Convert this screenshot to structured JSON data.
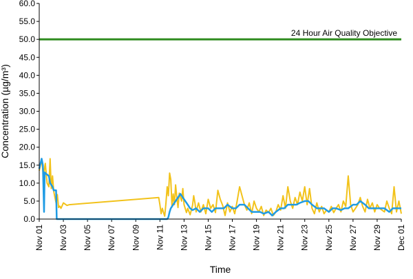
{
  "chart_data": {
    "type": "line",
    "ylabel": "Concentration (µg/m³)",
    "xlabel": "Time",
    "ylim": [
      0,
      60
    ],
    "ytick_labels": [
      "0.0",
      "5.0",
      "10.0",
      "15.0",
      "20.0",
      "25.0",
      "30.0",
      "35.0",
      "40.0",
      "45.0",
      "50.0",
      "55.0",
      "60.0"
    ],
    "x_domain_days": [
      0,
      30
    ],
    "xtick_labels": [
      "Nov 01",
      "Nov 03",
      "Nov 05",
      "Nov 07",
      "Nov 09",
      "Nov 11",
      "Nov 13",
      "Nov 15",
      "Nov 17",
      "Nov 19",
      "Nov 21",
      "Nov 23",
      "Nov 25",
      "Nov 27",
      "Nov 29",
      "Dec 01"
    ],
    "grid": false,
    "objective": {
      "label": "24 Hour Air Quality Objective",
      "value": 50,
      "color": "#2e8b1e"
    },
    "series": [
      {
        "color": "#f2c21a",
        "points": [
          [
            0.0,
            13.5
          ],
          [
            0.2,
            16.5
          ],
          [
            0.35,
            12.0
          ],
          [
            0.5,
            15.5
          ],
          [
            0.65,
            10.0
          ],
          [
            0.8,
            9.0
          ],
          [
            0.9,
            16.8
          ],
          [
            1.0,
            8.5
          ],
          [
            1.1,
            12.0
          ],
          [
            1.2,
            7.8
          ],
          [
            1.3,
            6.0
          ],
          [
            1.4,
            4.5
          ],
          [
            1.5,
            6.8
          ],
          [
            1.6,
            3.2
          ],
          [
            1.7,
            3.6
          ],
          [
            1.8,
            3.0
          ],
          [
            2.0,
            4.5
          ],
          [
            2.3,
            3.8
          ],
          [
            2.5,
            4.0
          ],
          [
            9.9,
            6.0
          ],
          [
            10.0,
            4.0
          ],
          [
            10.1,
            1.5
          ],
          [
            10.2,
            3.0
          ],
          [
            10.3,
            1.8
          ],
          [
            10.4,
            0.8
          ],
          [
            10.5,
            4.5
          ],
          [
            10.6,
            9.0
          ],
          [
            10.7,
            6.5
          ],
          [
            10.8,
            12.8
          ],
          [
            10.9,
            11.0
          ],
          [
            11.0,
            3.5
          ],
          [
            11.1,
            7.0
          ],
          [
            11.2,
            4.0
          ],
          [
            11.3,
            9.5
          ],
          [
            11.4,
            6.0
          ],
          [
            11.5,
            3.2
          ],
          [
            11.6,
            7.2
          ],
          [
            11.8,
            5.0
          ],
          [
            11.9,
            8.5
          ],
          [
            12.0,
            4.0
          ],
          [
            12.2,
            1.8
          ],
          [
            12.3,
            3.0
          ],
          [
            12.5,
            1.2
          ],
          [
            12.7,
            3.8
          ],
          [
            12.8,
            6.5
          ],
          [
            12.9,
            4.5
          ],
          [
            13.0,
            2.0
          ],
          [
            13.2,
            4.5
          ],
          [
            13.4,
            2.0
          ],
          [
            13.6,
            4.0
          ],
          [
            13.8,
            1.5
          ],
          [
            14.0,
            5.5
          ],
          [
            14.2,
            3.0
          ],
          [
            14.4,
            4.0
          ],
          [
            14.6,
            1.8
          ],
          [
            14.8,
            8.0
          ],
          [
            15.0,
            5.5
          ],
          [
            15.2,
            3.8
          ],
          [
            15.4,
            1.0
          ],
          [
            15.6,
            4.5
          ],
          [
            15.8,
            2.0
          ],
          [
            16.0,
            3.5
          ],
          [
            16.2,
            1.5
          ],
          [
            16.4,
            5.0
          ],
          [
            16.6,
            9.0
          ],
          [
            16.8,
            6.5
          ],
          [
            17.0,
            4.0
          ],
          [
            17.2,
            2.5
          ],
          [
            17.4,
            4.5
          ],
          [
            17.6,
            1.5
          ],
          [
            17.8,
            5.0
          ],
          [
            18.0,
            3.0
          ],
          [
            18.2,
            2.0
          ],
          [
            18.4,
            3.5
          ],
          [
            18.6,
            1.0
          ],
          [
            18.8,
            2.5
          ],
          [
            19.0,
            1.8
          ],
          [
            19.2,
            3.0
          ],
          [
            19.4,
            1.0
          ],
          [
            19.6,
            2.0
          ],
          [
            19.8,
            4.0
          ],
          [
            20.0,
            2.5
          ],
          [
            20.2,
            6.5
          ],
          [
            20.4,
            3.0
          ],
          [
            20.6,
            9.0
          ],
          [
            20.8,
            5.0
          ],
          [
            21.0,
            3.0
          ],
          [
            21.2,
            6.0
          ],
          [
            21.4,
            4.0
          ],
          [
            21.6,
            7.5
          ],
          [
            21.8,
            5.0
          ],
          [
            22.0,
            9.0
          ],
          [
            22.2,
            4.0
          ],
          [
            22.4,
            8.5
          ],
          [
            22.6,
            3.0
          ],
          [
            22.8,
            1.5
          ],
          [
            23.0,
            4.5
          ],
          [
            23.2,
            2.0
          ],
          [
            23.4,
            3.5
          ],
          [
            23.6,
            1.5
          ],
          [
            23.8,
            2.5
          ],
          [
            24.0,
            2.0
          ],
          [
            24.2,
            3.5
          ],
          [
            24.4,
            1.8
          ],
          [
            24.6,
            3.0
          ],
          [
            24.8,
            4.0
          ],
          [
            25.0,
            2.0
          ],
          [
            25.2,
            5.0
          ],
          [
            25.4,
            3.5
          ],
          [
            25.6,
            12.0
          ],
          [
            25.8,
            4.0
          ],
          [
            26.0,
            2.0
          ],
          [
            26.2,
            3.0
          ],
          [
            26.4,
            4.0
          ],
          [
            26.6,
            6.0
          ],
          [
            26.8,
            3.5
          ],
          [
            27.0,
            2.0
          ],
          [
            27.2,
            5.5
          ],
          [
            27.4,
            3.0
          ],
          [
            27.6,
            4.5
          ],
          [
            27.8,
            2.0
          ],
          [
            28.0,
            4.0
          ],
          [
            28.2,
            3.0
          ],
          [
            28.4,
            2.5
          ],
          [
            28.6,
            2.0
          ],
          [
            28.8,
            5.0
          ],
          [
            29.0,
            3.0
          ],
          [
            29.2,
            1.5
          ],
          [
            29.4,
            9.0
          ],
          [
            29.6,
            2.0
          ],
          [
            29.8,
            5.0
          ],
          [
            30.0,
            1.5
          ]
        ]
      },
      {
        "color": "#1f9be4",
        "points": [
          [
            0.0,
            14.0
          ],
          [
            0.2,
            16.8
          ],
          [
            0.3,
            15.0
          ],
          [
            0.4,
            2.0
          ],
          [
            0.45,
            13.0
          ],
          [
            0.6,
            12.5
          ],
          [
            0.8,
            12.0
          ],
          [
            0.9,
            10.0
          ],
          [
            1.1,
            9.0
          ],
          [
            1.2,
            8.0
          ],
          [
            1.4,
            8.0
          ],
          [
            1.45,
            0.0
          ],
          [
            10.6,
            0.0
          ],
          [
            10.7,
            0.5
          ],
          [
            10.8,
            2.0
          ],
          [
            10.9,
            3.0
          ],
          [
            11.1,
            4.0
          ],
          [
            11.3,
            5.0
          ],
          [
            11.5,
            6.0
          ],
          [
            11.7,
            7.0
          ],
          [
            11.9,
            6.0
          ],
          [
            12.1,
            5.0
          ],
          [
            12.3,
            4.0
          ],
          [
            12.5,
            3.0
          ],
          [
            12.7,
            2.5
          ],
          [
            13.0,
            3.0
          ],
          [
            13.3,
            2.0
          ],
          [
            13.6,
            3.0
          ],
          [
            14.0,
            3.0
          ],
          [
            14.3,
            2.0
          ],
          [
            14.6,
            3.0
          ],
          [
            15.0,
            3.0
          ],
          [
            15.3,
            3.0
          ],
          [
            15.6,
            4.0
          ],
          [
            16.0,
            3.0
          ],
          [
            16.3,
            3.0
          ],
          [
            16.6,
            4.0
          ],
          [
            17.0,
            4.0
          ],
          [
            17.3,
            3.0
          ],
          [
            17.6,
            2.0
          ],
          [
            18.0,
            2.0
          ],
          [
            18.3,
            2.0
          ],
          [
            18.6,
            1.5
          ],
          [
            19.0,
            2.0
          ],
          [
            19.3,
            1.0
          ],
          [
            19.6,
            2.0
          ],
          [
            20.0,
            3.0
          ],
          [
            20.3,
            3.0
          ],
          [
            20.6,
            4.0
          ],
          [
            21.0,
            4.0
          ],
          [
            21.3,
            4.0
          ],
          [
            21.6,
            4.5
          ],
          [
            22.0,
            5.0
          ],
          [
            22.3,
            5.0
          ],
          [
            22.6,
            4.0
          ],
          [
            23.0,
            3.0
          ],
          [
            23.3,
            3.0
          ],
          [
            23.6,
            3.0
          ],
          [
            24.0,
            2.0
          ],
          [
            24.3,
            3.0
          ],
          [
            24.6,
            3.0
          ],
          [
            25.0,
            2.5
          ],
          [
            25.3,
            3.0
          ],
          [
            25.6,
            3.0
          ],
          [
            26.0,
            4.0
          ],
          [
            26.3,
            4.0
          ],
          [
            26.6,
            5.0
          ],
          [
            27.0,
            4.0
          ],
          [
            27.3,
            3.0
          ],
          [
            27.6,
            3.0
          ],
          [
            28.0,
            3.0
          ],
          [
            28.3,
            3.0
          ],
          [
            28.6,
            3.0
          ],
          [
            29.0,
            2.0
          ],
          [
            29.3,
            3.0
          ],
          [
            29.6,
            3.0
          ],
          [
            30.0,
            3.0
          ]
        ]
      }
    ]
  }
}
